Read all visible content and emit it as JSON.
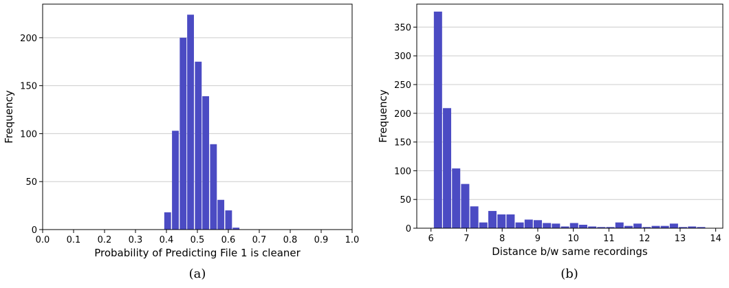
{
  "chart_data": [
    {
      "type": "bar",
      "panel_label": "(a)",
      "xlabel": "Probability of Predicting File 1 is cleaner",
      "ylabel": "Frequency",
      "xlim": [
        0.0,
        1.0
      ],
      "ylim": [
        0,
        235
      ],
      "xticks": [
        "0.0",
        "0.1",
        "0.2",
        "0.3",
        "0.4",
        "0.5",
        "0.6",
        "0.7",
        "0.8",
        "0.9",
        "1.0"
      ],
      "yticks": [
        "0",
        "50",
        "100",
        "150",
        "200"
      ],
      "grid": "horizontal",
      "bar_color": "#4b4bc3",
      "bin_width": 0.0245,
      "bins": [
        {
          "x": 0.393,
          "value": 18
        },
        {
          "x": 0.418,
          "value": 103
        },
        {
          "x": 0.443,
          "value": 200
        },
        {
          "x": 0.467,
          "value": 224
        },
        {
          "x": 0.492,
          "value": 175
        },
        {
          "x": 0.516,
          "value": 139
        },
        {
          "x": 0.541,
          "value": 89
        },
        {
          "x": 0.565,
          "value": 31
        },
        {
          "x": 0.59,
          "value": 20
        },
        {
          "x": 0.614,
          "value": 2
        }
      ]
    },
    {
      "type": "bar",
      "panel_label": "(b)",
      "xlabel": "Distance b/w same recordings",
      "ylabel": "Frequency",
      "xlim": [
        5.6,
        14.2
      ],
      "ylim": [
        0,
        390
      ],
      "xticks": [
        "6",
        "7",
        "8",
        "9",
        "10",
        "11",
        "12",
        "13",
        "14"
      ],
      "yticks": [
        "0",
        "50",
        "100",
        "150",
        "200",
        "250",
        "300",
        "350"
      ],
      "grid": "horizontal",
      "bar_color": "#4b4bc3",
      "bin_width": 0.255,
      "bins": [
        {
          "x": 6.08,
          "value": 377
        },
        {
          "x": 6.335,
          "value": 209
        },
        {
          "x": 6.59,
          "value": 104
        },
        {
          "x": 6.845,
          "value": 77
        },
        {
          "x": 7.1,
          "value": 38
        },
        {
          "x": 7.355,
          "value": 10
        },
        {
          "x": 7.61,
          "value": 30
        },
        {
          "x": 7.865,
          "value": 24
        },
        {
          "x": 8.12,
          "value": 24
        },
        {
          "x": 8.375,
          "value": 10
        },
        {
          "x": 8.63,
          "value": 15
        },
        {
          "x": 8.885,
          "value": 14
        },
        {
          "x": 9.14,
          "value": 9
        },
        {
          "x": 9.395,
          "value": 8
        },
        {
          "x": 9.65,
          "value": 3
        },
        {
          "x": 9.905,
          "value": 9
        },
        {
          "x": 10.16,
          "value": 6
        },
        {
          "x": 10.415,
          "value": 3
        },
        {
          "x": 10.67,
          "value": 2
        },
        {
          "x": 10.925,
          "value": 2
        },
        {
          "x": 11.18,
          "value": 10
        },
        {
          "x": 11.435,
          "value": 4
        },
        {
          "x": 11.69,
          "value": 8
        },
        {
          "x": 11.945,
          "value": 2
        },
        {
          "x": 12.2,
          "value": 4
        },
        {
          "x": 12.455,
          "value": 4
        },
        {
          "x": 12.71,
          "value": 8
        },
        {
          "x": 12.965,
          "value": 2
        },
        {
          "x": 13.22,
          "value": 3
        },
        {
          "x": 13.475,
          "value": 2
        }
      ]
    }
  ]
}
